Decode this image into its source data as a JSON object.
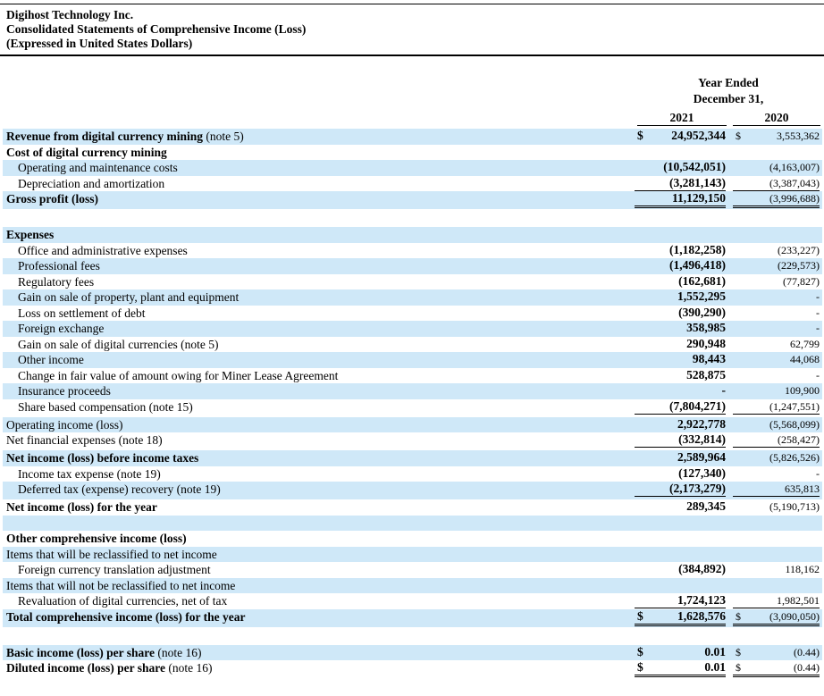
{
  "header": {
    "company": "Digihost Technology Inc.",
    "statement": "Consolidated Statements of Comprehensive Income (Loss)",
    "basis": "(Expressed in United States Dollars)"
  },
  "columns": {
    "period": "Year Ended",
    "date": "December 31,",
    "years": [
      "2021",
      "2020"
    ]
  },
  "rows": [
    {
      "label": "Revenue from digital currency mining",
      "note": "(note 5)",
      "currency": [
        "$",
        "$"
      ],
      "values": [
        "24,952,344",
        "3,553,362"
      ]
    },
    {
      "label": "Cost of digital currency mining"
    },
    {
      "label": "Operating and maintenance costs",
      "values": [
        "(10,542,051)",
        "(4,163,007)"
      ]
    },
    {
      "label": "Depreciation and amortization",
      "values": [
        "(3,281,143)",
        "(3,387,043)"
      ]
    },
    {
      "label": "Gross profit (loss)",
      "values": [
        "11,129,150",
        "(3,996,688)"
      ]
    },
    {
      "label": "Expenses"
    },
    {
      "label": "Office and administrative expenses",
      "values": [
        "(1,182,258)",
        "(233,227)"
      ]
    },
    {
      "label": "Professional fees",
      "values": [
        "(1,496,418)",
        "(229,573)"
      ]
    },
    {
      "label": "Regulatory fees",
      "values": [
        "(162,681)",
        "(77,827)"
      ]
    },
    {
      "label": "Gain on sale of property, plant and equipment",
      "values": [
        "1,552,295",
        "-"
      ]
    },
    {
      "label": "Loss on settlement of debt",
      "values": [
        "(390,290)",
        "-"
      ]
    },
    {
      "label": "Foreign exchange",
      "values": [
        "358,985",
        "-"
      ]
    },
    {
      "label": "Gain on sale of digital currencies (note 5)",
      "values": [
        "290,948",
        "62,799"
      ]
    },
    {
      "label": "Other income",
      "values": [
        "98,443",
        "44,068"
      ]
    },
    {
      "label": "Change in fair value of amount owing for Miner Lease Agreement",
      "values": [
        "528,875",
        "-"
      ]
    },
    {
      "label": "Insurance proceeds",
      "values": [
        "-",
        "109,900"
      ]
    },
    {
      "label": "Share based compensation (note 15)",
      "values": [
        "(7,804,271)",
        "(1,247,551)"
      ]
    },
    {
      "label": "Operating income (loss)",
      "values": [
        "2,922,778",
        "(5,568,099)"
      ]
    },
    {
      "label": "Net financial expenses (note 18)",
      "values": [
        "(332,814)",
        "(258,427)"
      ]
    },
    {
      "label": "Net income (loss) before income taxes",
      "values": [
        "2,589,964",
        "(5,826,526)"
      ]
    },
    {
      "label": "Income tax expense (note 19)",
      "values": [
        "(127,340)",
        "-"
      ]
    },
    {
      "label": "Deferred tax (expense) recovery (note 19)",
      "values": [
        "(2,173,279)",
        "635,813"
      ]
    },
    {
      "label": "Net income (loss) for the year",
      "values": [
        "289,345",
        "(5,190,713)"
      ]
    },
    {
      "label": "Other comprehensive income (loss)"
    },
    {
      "label": "Items that will be reclassified to net income"
    },
    {
      "label": "Foreign currency translation adjustment",
      "values": [
        "(384,892)",
        "118,162"
      ]
    },
    {
      "label": "Items that will not be reclassified to net income"
    },
    {
      "label": "Revaluation of digital currencies, net of tax",
      "values": [
        "1,724,123",
        "1,982,501"
      ]
    },
    {
      "label": "Total comprehensive income (loss) for the year",
      "currency": [
        "$",
        "$"
      ],
      "values": [
        "1,628,576",
        "(3,090,050)"
      ]
    },
    {
      "label": "Basic income (loss) per share",
      "note": "(note 16)",
      "currency": [
        "$",
        "$"
      ],
      "values": [
        "0.01",
        "(0.44)"
      ]
    },
    {
      "label": "Diluted income (loss) per share",
      "note": "(note 16)",
      "currency": [
        "$",
        "$"
      ],
      "values": [
        "0.01",
        "(0.44)"
      ]
    }
  ]
}
